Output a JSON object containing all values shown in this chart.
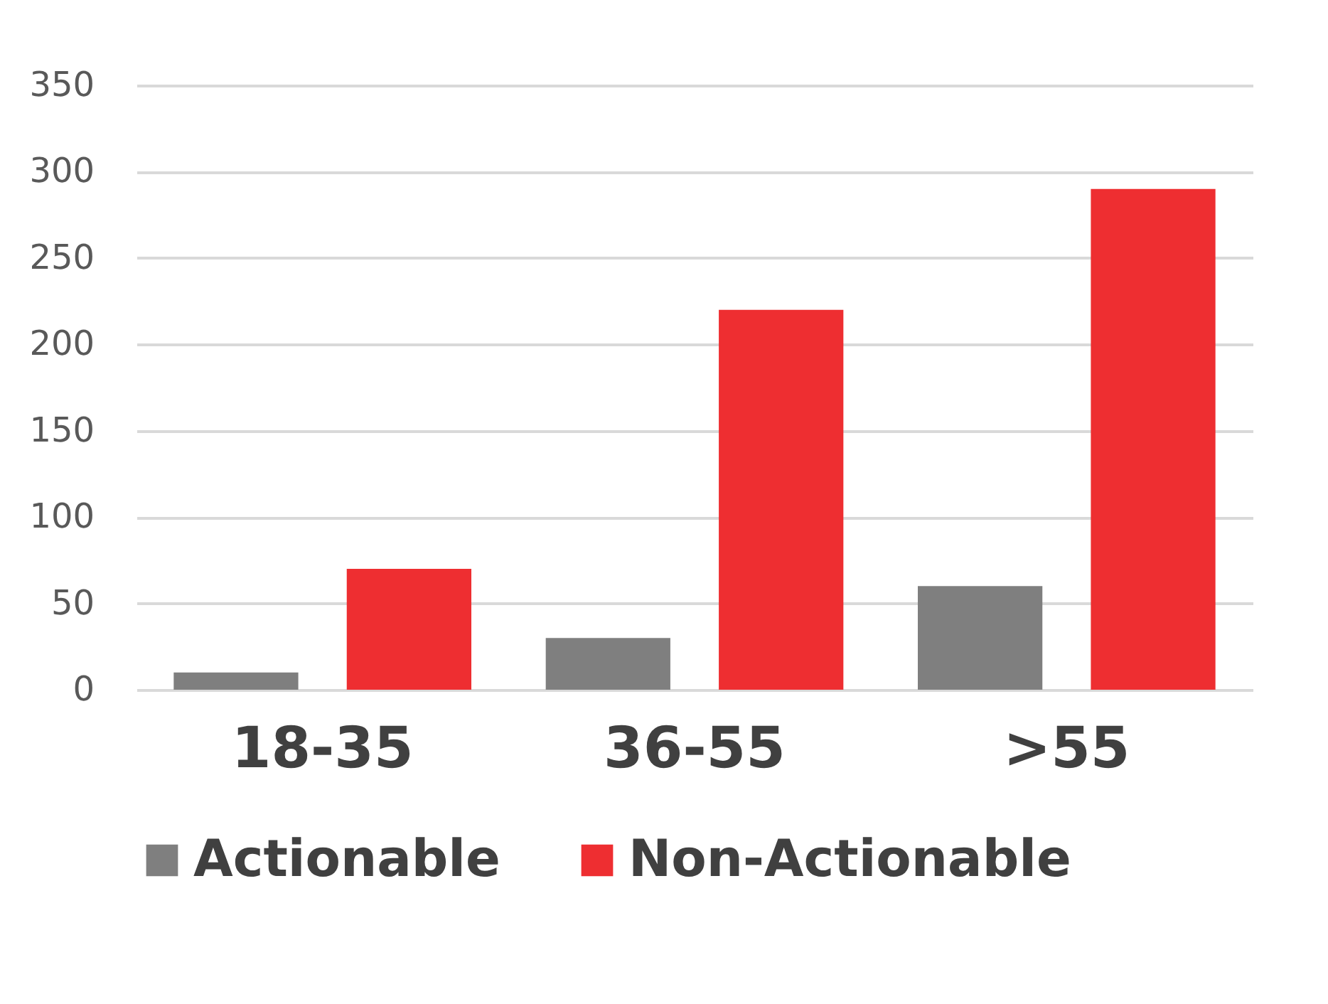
{
  "chart_data": {
    "type": "bar",
    "categories": [
      "18-35",
      "36-55",
      ">55"
    ],
    "series": [
      {
        "name": "Actionable",
        "color": "#7f7f7f",
        "values": [
          10,
          30,
          60
        ]
      },
      {
        "name": "Non-Actionable",
        "color": "#ee2e31",
        "values": [
          70,
          220,
          290
        ]
      }
    ],
    "ylim": [
      0,
      350
    ],
    "yticks": [
      0,
      50,
      100,
      150,
      200,
      250,
      300,
      350
    ],
    "grid": "y",
    "legend": "bottom"
  }
}
